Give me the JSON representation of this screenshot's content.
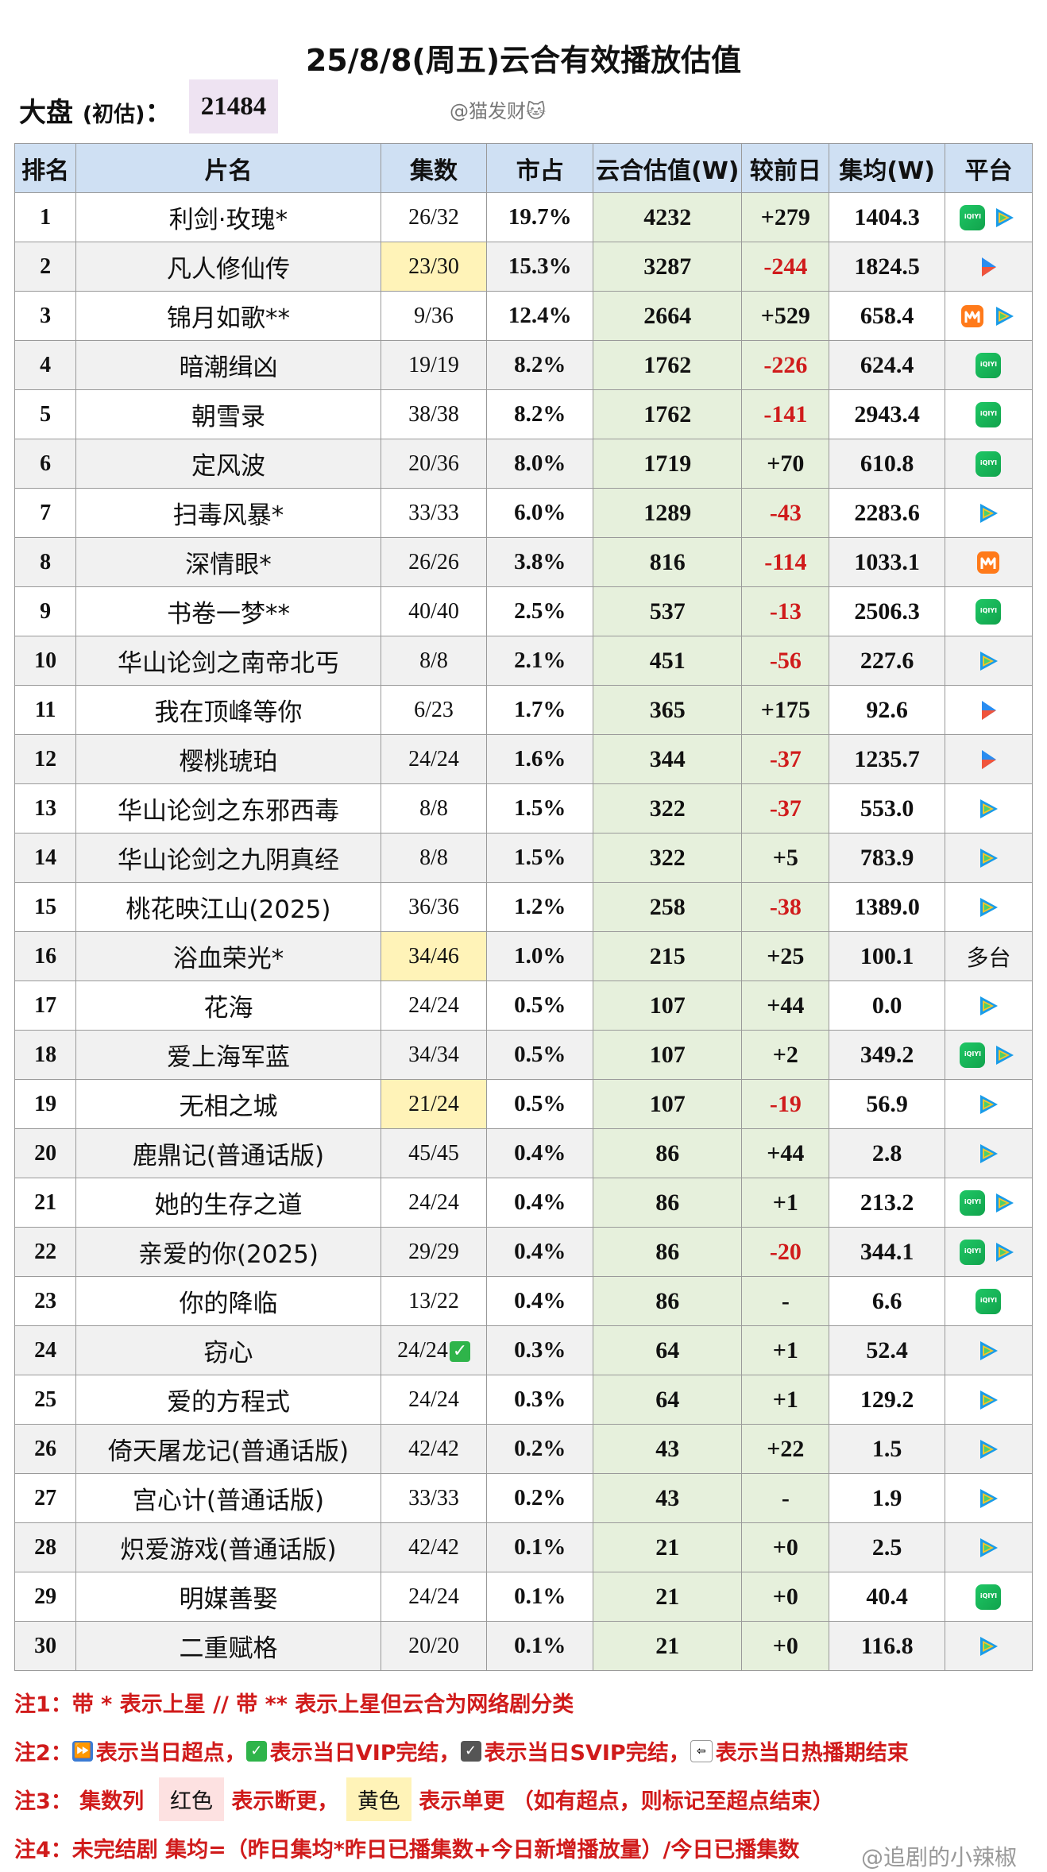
{
  "title": "25/8/8(周五)云合有效播放估值",
  "market": {
    "label": "大盘",
    "sub": "(初估)",
    "colon": "：",
    "value": "21484",
    "watermark": "@猫发财🐱"
  },
  "columns": [
    "排名",
    "片名",
    "集数",
    "市占",
    "云合估值(W)",
    "较前日",
    "集均(W)",
    "平台"
  ],
  "rows": [
    {
      "rank": "1",
      "name": "利剑·玫瑰*",
      "eps": "26/32",
      "share": "19.7%",
      "est": "4232",
      "chg": "+279",
      "avg": "1404.3",
      "plat": [
        "iqiyi",
        "tencent"
      ]
    },
    {
      "rank": "2",
      "name": "凡人修仙传",
      "eps": "23/30",
      "eps_hl": "yellow",
      "share": "15.3%",
      "est": "3287",
      "chg": "-244",
      "avg": "1824.5",
      "plat": [
        "youku"
      ]
    },
    {
      "rank": "3",
      "name": "锦月如歌**",
      "eps": "9/36",
      "share": "12.4%",
      "est": "2664",
      "chg": "+529",
      "avg": "658.4",
      "plat": [
        "mango",
        "tencent"
      ]
    },
    {
      "rank": "4",
      "name": "暗潮缉凶",
      "eps": "19/19",
      "share": "8.2%",
      "est": "1762",
      "chg": "-226",
      "avg": "624.4",
      "plat": [
        "iqiyi"
      ]
    },
    {
      "rank": "5",
      "name": "朝雪录",
      "eps": "38/38",
      "share": "8.2%",
      "est": "1762",
      "chg": "-141",
      "avg": "2943.4",
      "plat": [
        "iqiyi"
      ]
    },
    {
      "rank": "6",
      "name": "定风波",
      "eps": "20/36",
      "share": "8.0%",
      "est": "1719",
      "chg": "+70",
      "avg": "610.8",
      "plat": [
        "iqiyi"
      ]
    },
    {
      "rank": "7",
      "name": "扫毒风暴*",
      "eps": "33/33",
      "share": "6.0%",
      "est": "1289",
      "chg": "-43",
      "avg": "2283.6",
      "plat": [
        "tencent"
      ]
    },
    {
      "rank": "8",
      "name": "深情眼*",
      "eps": "26/26",
      "share": "3.8%",
      "est": "816",
      "chg": "-114",
      "avg": "1033.1",
      "plat": [
        "mango"
      ]
    },
    {
      "rank": "9",
      "name": "书卷一梦**",
      "eps": "40/40",
      "share": "2.5%",
      "est": "537",
      "chg": "-13",
      "avg": "2506.3",
      "plat": [
        "iqiyi"
      ]
    },
    {
      "rank": "10",
      "name": "华山论剑之南帝北丐",
      "eps": "8/8",
      "share": "2.1%",
      "est": "451",
      "chg": "-56",
      "avg": "227.6",
      "plat": [
        "tencent"
      ]
    },
    {
      "rank": "11",
      "name": "我在顶峰等你",
      "eps": "6/23",
      "share": "1.7%",
      "est": "365",
      "chg": "+175",
      "avg": "92.6",
      "plat": [
        "youku"
      ]
    },
    {
      "rank": "12",
      "name": "樱桃琥珀",
      "eps": "24/24",
      "share": "1.6%",
      "est": "344",
      "chg": "-37",
      "avg": "1235.7",
      "plat": [
        "youku"
      ]
    },
    {
      "rank": "13",
      "name": "华山论剑之东邪西毒",
      "eps": "8/8",
      "share": "1.5%",
      "est": "322",
      "chg": "-37",
      "avg": "553.0",
      "plat": [
        "tencent"
      ]
    },
    {
      "rank": "14",
      "name": "华山论剑之九阴真经",
      "eps": "8/8",
      "share": "1.5%",
      "est": "322",
      "chg": "+5",
      "avg": "783.9",
      "plat": [
        "tencent"
      ]
    },
    {
      "rank": "15",
      "name": "桃花映江山(2025)",
      "eps": "36/36",
      "share": "1.2%",
      "est": "258",
      "chg": "-38",
      "avg": "1389.0",
      "plat": [
        "tencent"
      ]
    },
    {
      "rank": "16",
      "name": "浴血荣光*",
      "eps": "34/46",
      "eps_hl": "yellow",
      "share": "1.0%",
      "est": "215",
      "chg": "+25",
      "avg": "100.1",
      "plat_text": "多台"
    },
    {
      "rank": "17",
      "name": "花海",
      "eps": "24/24",
      "share": "0.5%",
      "est": "107",
      "chg": "+44",
      "avg": "0.0",
      "plat": [
        "tencent"
      ]
    },
    {
      "rank": "18",
      "name": "爱上海军蓝",
      "eps": "34/34",
      "share": "0.5%",
      "est": "107",
      "chg": "+2",
      "avg": "349.2",
      "plat": [
        "iqiyi",
        "tencent"
      ]
    },
    {
      "rank": "19",
      "name": "无相之城",
      "eps": "21/24",
      "eps_hl": "yellow",
      "share": "0.5%",
      "est": "107",
      "chg": "-19",
      "avg": "56.9",
      "plat": [
        "tencent"
      ]
    },
    {
      "rank": "20",
      "name": "鹿鼎记(普通话版)",
      "eps": "45/45",
      "share": "0.4%",
      "est": "86",
      "chg": "+44",
      "avg": "2.8",
      "plat": [
        "tencent"
      ]
    },
    {
      "rank": "21",
      "name": "她的生存之道",
      "eps": "24/24",
      "share": "0.4%",
      "est": "86",
      "chg": "+1",
      "avg": "213.2",
      "plat": [
        "iqiyi",
        "tencent"
      ]
    },
    {
      "rank": "22",
      "name": "亲爱的你(2025)",
      "eps": "29/29",
      "share": "0.4%",
      "est": "86",
      "chg": "-20",
      "avg": "344.1",
      "plat": [
        "iqiyi",
        "tencent"
      ]
    },
    {
      "rank": "23",
      "name": "你的降临",
      "eps": "13/22",
      "share": "0.4%",
      "est": "86",
      "chg": "-",
      "avg": "6.6",
      "plat": [
        "iqiyi"
      ]
    },
    {
      "rank": "24",
      "name": "窃心",
      "eps": "24/24",
      "eps_check": "✓",
      "share": "0.3%",
      "est": "64",
      "chg": "+1",
      "avg": "52.4",
      "plat": [
        "tencent"
      ]
    },
    {
      "rank": "25",
      "name": "爱的方程式",
      "eps": "24/24",
      "share": "0.3%",
      "est": "64",
      "chg": "+1",
      "avg": "129.2",
      "plat": [
        "tencent"
      ]
    },
    {
      "rank": "26",
      "name": "倚天屠龙记(普通话版)",
      "eps": "42/42",
      "share": "0.2%",
      "est": "43",
      "chg": "+22",
      "avg": "1.5",
      "plat": [
        "tencent"
      ]
    },
    {
      "rank": "27",
      "name": "宫心计(普通话版)",
      "eps": "33/33",
      "share": "0.2%",
      "est": "43",
      "chg": "-",
      "avg": "1.9",
      "plat": [
        "tencent"
      ]
    },
    {
      "rank": "28",
      "name": "炽爱游戏(普通话版)",
      "eps": "42/42",
      "share": "0.1%",
      "est": "21",
      "chg": "+0",
      "avg": "2.5",
      "plat": [
        "tencent"
      ]
    },
    {
      "rank": "29",
      "name": "明媒善娶",
      "eps": "24/24",
      "share": "0.1%",
      "est": "21",
      "chg": "+0",
      "avg": "40.4",
      "plat": [
        "iqiyi"
      ]
    },
    {
      "rank": "30",
      "name": "二重赋格",
      "eps": "20/20",
      "share": "0.1%",
      "est": "21",
      "chg": "+0",
      "avg": "116.8",
      "plat": [
        "tencent"
      ]
    }
  ],
  "notes": {
    "n1": "注1：带 * 表示上星 // 带 ** 表示上星但云合为网络剧分类",
    "n2_a": "注2：",
    "n2_b": "表示当日超点，",
    "n2_c": "表示当日VIP完结，",
    "n2_d": "表示当日SVIP完结，",
    "n2_e": "表示当日热播期结束",
    "n3_a": "注3：  集数列",
    "n3_red": "红色",
    "n3_b": "表示断更，",
    "n3_yel": "黄色",
    "n3_c": "表示单更 （如有超点，则标记至超点结束）",
    "n4": "注4：未完结剧 集均=（昨日集均*昨日已播集数+今日新增播放量）/今日已播集数",
    "watermark2": "@追剧的小辣椒"
  }
}
